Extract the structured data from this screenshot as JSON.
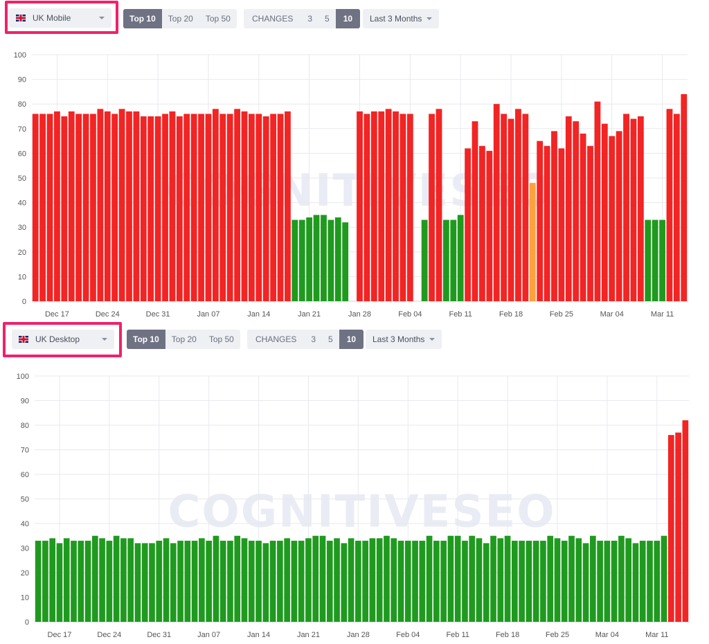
{
  "colors": {
    "red": "#f22424",
    "green": "#1f9a1f",
    "orange": "#fba33a",
    "active_toggle": "#6f7283",
    "highlight": "#f0216a"
  },
  "panels": [
    {
      "device_label": "UK Mobile",
      "flag_icon": "uk-flag-icon",
      "top_options": [
        "Top 10",
        "Top 20",
        "Top 50"
      ],
      "top_selected": "Top 10",
      "changes_label": "CHANGES",
      "changes_options": [
        "3",
        "5",
        "10"
      ],
      "changes_selected": "10",
      "period_label": "Last 3 Months",
      "watermark": "COGNITIVESEO",
      "chart_data": {
        "type": "bar",
        "ylim": [
          0,
          100
        ],
        "y_ticks": [
          0,
          10,
          20,
          30,
          40,
          50,
          60,
          70,
          80,
          90,
          100
        ],
        "x_ticks": [
          "Dec 17",
          "Dec 24",
          "Dec 31",
          "Jan 07",
          "Jan 14",
          "Jan 21",
          "Jan 28",
          "Feb 04",
          "Feb 11",
          "Feb 18",
          "Feb 25",
          "Mar 04",
          "Mar 11"
        ],
        "grid": true,
        "values": [
          76,
          76,
          76,
          77,
          75,
          77,
          76,
          76,
          76,
          78,
          77,
          76,
          78,
          77,
          77,
          75,
          75,
          75,
          76,
          77,
          75,
          76,
          76,
          76,
          76,
          78,
          76,
          76,
          78,
          77,
          76,
          76,
          75,
          76,
          76,
          77,
          33,
          33,
          34,
          35,
          35,
          33,
          34,
          32,
          null,
          77,
          76,
          77,
          77,
          78,
          77,
          76,
          76,
          null,
          33,
          76,
          78,
          33,
          33,
          35,
          62,
          73,
          63,
          61,
          80,
          76,
          74,
          78,
          76,
          48,
          65,
          63,
          69,
          62,
          75,
          73,
          68,
          63,
          81,
          72,
          67,
          69,
          76,
          74,
          75,
          33,
          33,
          33,
          78,
          76,
          84
        ],
        "colors": [
          "r",
          "r",
          "r",
          "r",
          "r",
          "r",
          "r",
          "r",
          "r",
          "r",
          "r",
          "r",
          "r",
          "r",
          "r",
          "r",
          "r",
          "r",
          "r",
          "r",
          "r",
          "r",
          "r",
          "r",
          "r",
          "r",
          "r",
          "r",
          "r",
          "r",
          "r",
          "r",
          "r",
          "r",
          "r",
          "r",
          "g",
          "g",
          "g",
          "g",
          "g",
          "g",
          "g",
          "g",
          "n",
          "r",
          "r",
          "r",
          "r",
          "r",
          "r",
          "r",
          "r",
          "n",
          "g",
          "r",
          "r",
          "g",
          "g",
          "g",
          "r",
          "r",
          "r",
          "r",
          "r",
          "r",
          "r",
          "r",
          "r",
          "o",
          "r",
          "r",
          "r",
          "r",
          "r",
          "r",
          "r",
          "r",
          "r",
          "r",
          "r",
          "r",
          "r",
          "r",
          "r",
          "g",
          "g",
          "g",
          "r",
          "r",
          "r"
        ]
      }
    },
    {
      "device_label": "UK Desktop",
      "flag_icon": "uk-flag-icon",
      "top_options": [
        "Top 10",
        "Top 20",
        "Top 50"
      ],
      "top_selected": "Top 10",
      "changes_label": "CHANGES",
      "changes_options": [
        "3",
        "5",
        "10"
      ],
      "changes_selected": "10",
      "period_label": "Last 3 Months",
      "watermark": "COGNITIVESEO",
      "chart_data": {
        "type": "bar",
        "ylim": [
          0,
          100
        ],
        "y_ticks": [
          0,
          10,
          20,
          30,
          40,
          50,
          60,
          70,
          80,
          90,
          100
        ],
        "x_ticks": [
          "Dec 17",
          "Dec 24",
          "Dec 31",
          "Jan 07",
          "Jan 14",
          "Jan 21",
          "Jan 28",
          "Feb 04",
          "Feb 11",
          "Feb 18",
          "Feb 25",
          "Mar 04",
          "Mar 11"
        ],
        "grid": true,
        "values": [
          33,
          33,
          34,
          32,
          34,
          33,
          33,
          33,
          35,
          34,
          33,
          35,
          34,
          34,
          32,
          32,
          32,
          33,
          34,
          32,
          33,
          33,
          33,
          34,
          33,
          35,
          33,
          33,
          35,
          34,
          33,
          33,
          32,
          33,
          33,
          34,
          33,
          33,
          34,
          35,
          35,
          33,
          34,
          32,
          34,
          33,
          33,
          34,
          34,
          35,
          34,
          33,
          33,
          33,
          33,
          35,
          33,
          33,
          35,
          35,
          33,
          35,
          34,
          32,
          35,
          34,
          35,
          33,
          33,
          33,
          33,
          33,
          35,
          34,
          33,
          35,
          34,
          32,
          35,
          33,
          33,
          33,
          35,
          34,
          32,
          33,
          33,
          33,
          35,
          76,
          77,
          82
        ],
        "colors": [
          "g",
          "g",
          "g",
          "g",
          "g",
          "g",
          "g",
          "g",
          "g",
          "g",
          "g",
          "g",
          "g",
          "g",
          "g",
          "g",
          "g",
          "g",
          "g",
          "g",
          "g",
          "g",
          "g",
          "g",
          "g",
          "g",
          "g",
          "g",
          "g",
          "g",
          "g",
          "g",
          "g",
          "g",
          "g",
          "g",
          "g",
          "g",
          "g",
          "g",
          "g",
          "g",
          "g",
          "g",
          "g",
          "g",
          "g",
          "g",
          "g",
          "g",
          "g",
          "g",
          "g",
          "g",
          "g",
          "g",
          "g",
          "g",
          "g",
          "g",
          "g",
          "g",
          "g",
          "g",
          "g",
          "g",
          "g",
          "g",
          "g",
          "g",
          "g",
          "g",
          "g",
          "g",
          "g",
          "g",
          "g",
          "g",
          "g",
          "g",
          "g",
          "g",
          "g",
          "g",
          "g",
          "g",
          "g",
          "g",
          "g",
          "r",
          "r",
          "r"
        ]
      }
    }
  ]
}
